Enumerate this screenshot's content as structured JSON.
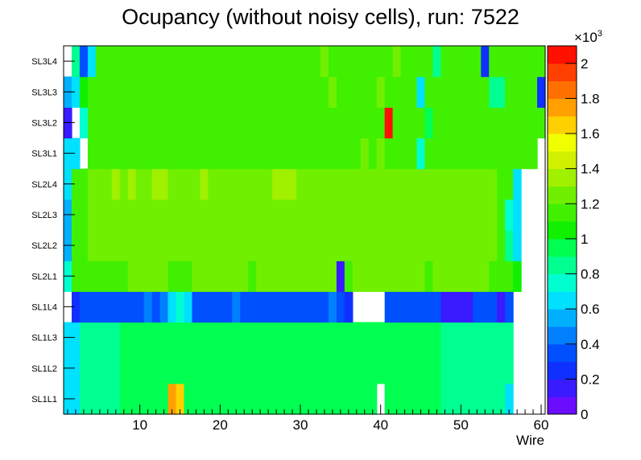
{
  "chart_data": {
    "type": "heatmap",
    "title": "Ocupancy (without noisy cells), run: 7522",
    "xlabel": "Wire",
    "ylabel": "",
    "xlim": [
      0.5,
      60.5
    ],
    "x_ticks": [
      "10",
      "20",
      "30",
      "40",
      "50",
      "60"
    ],
    "x_tick_values": [
      10,
      20,
      30,
      40,
      50,
      60
    ],
    "rows": [
      "SL1L1",
      "SL1L2",
      "SL1L3",
      "SL1L4",
      "SL2L1",
      "SL2L2",
      "SL2L3",
      "SL2L4",
      "SL3L1",
      "SL3L2",
      "SL3L3",
      "SL3L4"
    ],
    "z_range": [
      0,
      2100
    ],
    "z_multiplier_base": "×10",
    "z_multiplier_exp": "3",
    "z_ticks": [
      "0",
      "0.2",
      "0.4",
      "0.6",
      "0.8",
      "1",
      "1.2",
      "1.4",
      "1.6",
      "1.8",
      "2"
    ],
    "z_tick_values": [
      0,
      200,
      400,
      600,
      800,
      1000,
      1200,
      1400,
      1600,
      1800,
      2000
    ],
    "palette": [
      "#6a0dff",
      "#3a1aff",
      "#1030ff",
      "#0050ff",
      "#0080ff",
      "#00b0ff",
      "#00e0ff",
      "#00ffd0",
      "#00ff90",
      "#00ff50",
      "#10f000",
      "#40f000",
      "#70f000",
      "#a0f000",
      "#d0f000",
      "#f0ff00",
      "#ffd000",
      "#ffa000",
      "#ff7000",
      "#ff4000",
      "#ff1000"
    ],
    "values": [
      [
        650,
        650,
        880,
        880,
        880,
        880,
        880,
        950,
        950,
        950,
        950,
        950,
        950,
        1750,
        1600,
        950,
        950,
        950,
        950,
        950,
        950,
        950,
        950,
        950,
        950,
        950,
        950,
        950,
        950,
        950,
        950,
        950,
        950,
        950,
        950,
        950,
        950,
        950,
        950,
        null,
        950,
        950,
        950,
        950,
        950,
        950,
        950,
        880,
        880,
        880,
        880,
        880,
        880,
        880,
        880,
        650,
        null,
        null,
        null,
        null
      ],
      [
        650,
        650,
        800,
        880,
        880,
        880,
        880,
        950,
        950,
        950,
        950,
        950,
        950,
        950,
        950,
        950,
        950,
        950,
        950,
        950,
        950,
        950,
        950,
        950,
        950,
        950,
        950,
        950,
        950,
        950,
        950,
        950,
        950,
        950,
        950,
        950,
        950,
        950,
        950,
        950,
        950,
        950,
        950,
        950,
        950,
        950,
        950,
        880,
        880,
        880,
        880,
        880,
        880,
        880,
        880,
        800,
        null,
        null,
        null,
        null
      ],
      [
        650,
        650,
        880,
        880,
        880,
        880,
        880,
        950,
        950,
        950,
        950,
        950,
        950,
        950,
        950,
        950,
        950,
        950,
        950,
        950,
        950,
        950,
        950,
        950,
        950,
        950,
        950,
        950,
        950,
        950,
        950,
        950,
        950,
        950,
        950,
        950,
        950,
        950,
        950,
        950,
        950,
        950,
        950,
        950,
        950,
        950,
        950,
        880,
        880,
        880,
        880,
        880,
        880,
        880,
        880,
        800,
        null,
        null,
        null,
        null
      ],
      [
        null,
        220,
        300,
        300,
        300,
        300,
        300,
        300,
        300,
        300,
        400,
        300,
        400,
        600,
        700,
        600,
        300,
        300,
        300,
        300,
        300,
        400,
        300,
        300,
        300,
        300,
        300,
        300,
        300,
        300,
        300,
        300,
        300,
        400,
        300,
        200,
        null,
        null,
        null,
        null,
        300,
        300,
        300,
        300,
        300,
        300,
        300,
        150,
        150,
        150,
        150,
        300,
        300,
        300,
        150,
        300,
        null,
        null,
        null,
        null
      ],
      [
        700,
        1100,
        1150,
        1150,
        1150,
        1150,
        1150,
        1150,
        1250,
        1250,
        1250,
        1250,
        1250,
        1150,
        1150,
        1150,
        1250,
        1250,
        1250,
        1250,
        1250,
        1250,
        1250,
        1150,
        1250,
        1250,
        1250,
        1250,
        1250,
        1250,
        1250,
        1250,
        1250,
        1250,
        150,
        1150,
        1250,
        1250,
        1250,
        1250,
        1250,
        1250,
        1250,
        1250,
        1250,
        1150,
        1250,
        1250,
        1250,
        1250,
        1250,
        1250,
        1250,
        1150,
        1150,
        1100,
        1050,
        null,
        null,
        null
      ],
      [
        500,
        1100,
        1150,
        1250,
        1250,
        1250,
        1250,
        1250,
        1250,
        1250,
        1250,
        1250,
        1250,
        1250,
        1250,
        1250,
        1250,
        1250,
        1250,
        1250,
        1250,
        1250,
        1250,
        1250,
        1250,
        1250,
        1250,
        1250,
        1250,
        1250,
        1250,
        1250,
        1250,
        1250,
        1250,
        1250,
        1250,
        1250,
        1250,
        1250,
        1250,
        1250,
        1250,
        1250,
        1250,
        1250,
        1250,
        1250,
        1250,
        1250,
        1250,
        1250,
        1250,
        1250,
        1150,
        800,
        650,
        null,
        null,
        null
      ],
      [
        500,
        1100,
        1150,
        1250,
        1250,
        1250,
        1250,
        1250,
        1250,
        1250,
        1250,
        1250,
        1250,
        1250,
        1250,
        1250,
        1250,
        1250,
        1250,
        1250,
        1250,
        1250,
        1250,
        1250,
        1250,
        1250,
        1250,
        1250,
        1250,
        1250,
        1250,
        1250,
        1250,
        1250,
        1250,
        1250,
        1250,
        1250,
        1250,
        1250,
        1250,
        1250,
        1250,
        1250,
        1250,
        1250,
        1250,
        1250,
        1250,
        1250,
        1250,
        1250,
        1250,
        1250,
        1150,
        700,
        650,
        null,
        null,
        null
      ],
      [
        650,
        1100,
        1150,
        1250,
        1250,
        1250,
        1350,
        1250,
        1350,
        1250,
        1250,
        1350,
        1350,
        1250,
        1250,
        1250,
        1250,
        1350,
        1250,
        1250,
        1250,
        1250,
        1250,
        1250,
        1250,
        1250,
        1350,
        1350,
        1350,
        1250,
        1250,
        1250,
        1250,
        1250,
        1250,
        1250,
        1250,
        1250,
        1250,
        1250,
        1250,
        1250,
        1250,
        1250,
        1250,
        1250,
        1250,
        1250,
        1250,
        1250,
        1250,
        1250,
        1250,
        1250,
        1150,
        1100,
        650,
        null,
        null,
        null
      ],
      [
        650,
        650,
        null,
        1100,
        1100,
        1150,
        1100,
        1100,
        1100,
        1100,
        1100,
        1100,
        1100,
        1150,
        1150,
        1100,
        1100,
        1100,
        1100,
        1150,
        1100,
        1100,
        1100,
        1100,
        1100,
        1100,
        1100,
        1100,
        1100,
        1100,
        1150,
        1100,
        1150,
        1150,
        1150,
        1150,
        1150,
        1250,
        1150,
        1250,
        1150,
        1150,
        1150,
        1150,
        700,
        1100,
        1100,
        1150,
        1150,
        1100,
        1150,
        1100,
        1150,
        1150,
        1150,
        1100,
        1100,
        1100,
        1150,
        null
      ],
      [
        150,
        null,
        750,
        1100,
        1100,
        1100,
        1100,
        1100,
        1100,
        1100,
        1100,
        1150,
        1100,
        1100,
        1150,
        1100,
        1100,
        1100,
        1100,
        1100,
        1100,
        1100,
        1100,
        1100,
        1100,
        1100,
        1100,
        1100,
        1150,
        1150,
        1100,
        1100,
        1150,
        1150,
        1150,
        1150,
        1150,
        1150,
        1150,
        1150,
        2050,
        1150,
        1150,
        1150,
        1150,
        900,
        1150,
        1150,
        1150,
        1150,
        1150,
        1150,
        1150,
        1150,
        1150,
        1150,
        1150,
        1150,
        1150,
        1150
      ],
      [
        500,
        650,
        1050,
        1100,
        1100,
        1100,
        1100,
        1100,
        1100,
        1100,
        1100,
        1100,
        1100,
        1100,
        1100,
        1150,
        1100,
        1100,
        1100,
        1100,
        1100,
        1150,
        1150,
        1150,
        1150,
        1150,
        1150,
        1150,
        1150,
        1150,
        1150,
        1150,
        1150,
        1200,
        1150,
        1150,
        1150,
        1150,
        1150,
        1200,
        1150,
        1150,
        1150,
        1150,
        650,
        1150,
        1150,
        1150,
        1150,
        1150,
        1150,
        1150,
        1150,
        800,
        800,
        1150,
        1150,
        1150,
        1150,
        250
      ],
      [
        null,
        850,
        350,
        600,
        1100,
        1100,
        1100,
        1100,
        1100,
        1100,
        1100,
        1100,
        1100,
        1100,
        1100,
        1150,
        1100,
        1100,
        1100,
        1100,
        1100,
        1100,
        1100,
        1100,
        1100,
        1100,
        1100,
        1100,
        1100,
        1100,
        1100,
        1100,
        1200,
        1150,
        1150,
        1150,
        1150,
        1150,
        1150,
        1150,
        1150,
        1200,
        1150,
        1150,
        1150,
        1150,
        850,
        1150,
        1150,
        1150,
        1150,
        1150,
        250,
        1150,
        1150,
        1150,
        1150,
        1150,
        1150,
        1150
      ]
    ]
  }
}
